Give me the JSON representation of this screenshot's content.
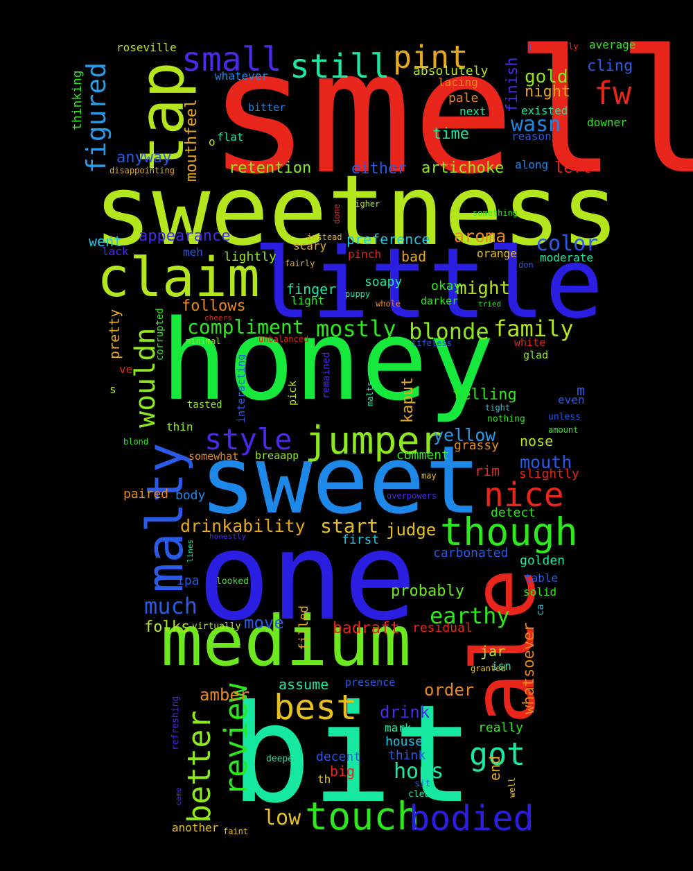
{
  "words": [
    {
      "text": "smell",
      "color": "#e8261c"
    },
    {
      "text": "sweetness",
      "color": "#b4e61e"
    },
    {
      "text": "honey",
      "color": "#16e83c"
    },
    {
      "text": "little",
      "color": "#2a1fe0"
    },
    {
      "text": "one",
      "color": "#2a1fe0"
    },
    {
      "text": "sweet",
      "color": "#1e88e8"
    },
    {
      "text": "bit",
      "color": "#16e8a0"
    },
    {
      "text": "ale",
      "color": "#e8261c"
    },
    {
      "text": "medium",
      "color": "#6ee81e"
    },
    {
      "text": "claim",
      "color": "#b4e61e"
    },
    {
      "text": "tap",
      "color": "#b4e61e"
    },
    {
      "text": "malty",
      "color": "#2a5ae8"
    },
    {
      "text": "jumper",
      "color": "#8ee81e"
    },
    {
      "text": "though",
      "color": "#2ee81e"
    },
    {
      "text": "touch",
      "color": "#2ee81e"
    },
    {
      "text": "bodied",
      "color": "#2a1fe0"
    },
    {
      "text": "best",
      "color": "#e8c01e"
    },
    {
      "text": "review",
      "color": "#2ee81e"
    },
    {
      "text": "better",
      "color": "#8ee81e"
    },
    {
      "text": "nice",
      "color": "#e8261c"
    },
    {
      "text": "got",
      "color": "#1ee8a0"
    },
    {
      "text": "still",
      "color": "#1ee8a0"
    },
    {
      "text": "pint",
      "color": "#e8a81e"
    },
    {
      "text": "small",
      "color": "#4a2ae8"
    },
    {
      "text": "fw",
      "color": "#e8261c"
    },
    {
      "text": "figured",
      "color": "#2a9ae8"
    },
    {
      "text": "wouldn",
      "color": "#8ee81e"
    },
    {
      "text": "style",
      "color": "#4a2ae8"
    },
    {
      "text": "compliment",
      "color": "#2ee81e"
    },
    {
      "text": "mostly",
      "color": "#2ee81e"
    },
    {
      "text": "blonde",
      "color": "#8ee81e"
    },
    {
      "text": "family",
      "color": "#b4e61e"
    },
    {
      "text": "wasn",
      "color": "#1e88e8"
    },
    {
      "text": "gold",
      "color": "#8ee81e"
    },
    {
      "text": "night",
      "color": "#e8a81e"
    },
    {
      "text": "color",
      "color": "#2a5ae8"
    },
    {
      "text": "aroma",
      "color": "#e8881e"
    },
    {
      "text": "might",
      "color": "#b4e61e"
    },
    {
      "text": "drinkability",
      "color": "#e8a81e"
    },
    {
      "text": "start",
      "color": "#e8c01e"
    },
    {
      "text": "judge",
      "color": "#e8c01e"
    },
    {
      "text": "much",
      "color": "#2a5ae8"
    },
    {
      "text": "earthy",
      "color": "#2ee81e"
    },
    {
      "text": "hops",
      "color": "#1ee8a0"
    },
    {
      "text": "low",
      "color": "#e8c01e"
    },
    {
      "text": "mouth",
      "color": "#2a5ae8"
    },
    {
      "text": "yellow",
      "color": "#2a9ae8"
    },
    {
      "text": "telling",
      "color": "#2ee81e"
    },
    {
      "text": "kaput",
      "color": "#e8a81e"
    },
    {
      "text": "whatsoever",
      "color": "#e8881e"
    },
    {
      "text": "amber",
      "color": "#e8881e"
    },
    {
      "text": "order",
      "color": "#e8881e"
    },
    {
      "text": "drink",
      "color": "#4a2ae8"
    },
    {
      "text": "move",
      "color": "#2a5ae8"
    },
    {
      "text": "badraft",
      "color": "#e8261c"
    },
    {
      "text": "folks",
      "color": "#b4e61e"
    },
    {
      "text": "probably",
      "color": "#6ee81e"
    },
    {
      "text": "retention",
      "color": "#8ee81e"
    },
    {
      "text": "either",
      "color": "#2a5ae8"
    },
    {
      "text": "artichoke",
      "color": "#8ee81e"
    },
    {
      "text": "left",
      "color": "#e8261c"
    },
    {
      "text": "anyway",
      "color": "#2a5ae8"
    },
    {
      "text": "mouthfeel",
      "color": "#e8a81e"
    },
    {
      "text": "finish",
      "color": "#4a2ae8"
    },
    {
      "text": "appearance",
      "color": "#4a2ae8"
    },
    {
      "text": "preference",
      "color": "#1ec8e8"
    },
    {
      "text": "absolutely",
      "color": "#b4e61e"
    },
    {
      "text": "time",
      "color": "#1ee8a0"
    },
    {
      "text": "went",
      "color": "#1ec8e8"
    },
    {
      "text": "pretty",
      "color": "#e8a81e"
    },
    {
      "text": "follows",
      "color": "#e8881e"
    },
    {
      "text": "lightly",
      "color": "#8ee81e"
    },
    {
      "text": "finger",
      "color": "#1ee8a0"
    },
    {
      "text": "soapy",
      "color": "#1ee8a0"
    },
    {
      "text": "okay",
      "color": "#2ee81e"
    },
    {
      "text": "bad",
      "color": "#e8a81e"
    },
    {
      "text": "rim",
      "color": "#e8261c"
    },
    {
      "text": "slightly",
      "color": "#e8261c"
    },
    {
      "text": "nose",
      "color": "#b4e61e"
    },
    {
      "text": "grassy",
      "color": "#e8881e"
    },
    {
      "text": "comment",
      "color": "#2ee81e"
    },
    {
      "text": "jar",
      "color": "#b4e61e"
    },
    {
      "text": "assume",
      "color": "#1ee8a0"
    },
    {
      "text": "golden",
      "color": "#1ee8a0"
    },
    {
      "text": "carbonated",
      "color": "#2a5ae8"
    },
    {
      "text": "first",
      "color": "#1ec8e8"
    },
    {
      "text": "body",
      "color": "#1e88e8"
    },
    {
      "text": "paired",
      "color": "#e8881e"
    },
    {
      "text": "ipa",
      "color": "#2a5ae8"
    },
    {
      "text": "detect",
      "color": "#2ee81e"
    },
    {
      "text": "solid",
      "color": "#2ee81e"
    },
    {
      "text": "table",
      "color": "#2a5ae8"
    },
    {
      "text": "residual",
      "color": "#e8261c"
    },
    {
      "text": "filled",
      "color": "#e8a81e"
    },
    {
      "text": "end",
      "color": "#e8a81e"
    },
    {
      "text": "big",
      "color": "#e8261c"
    },
    {
      "text": "house",
      "color": "#1ec8e8"
    },
    {
      "text": "think",
      "color": "#2a5ae8"
    },
    {
      "text": "decent",
      "color": "#2a5ae8"
    },
    {
      "text": "mark",
      "color": "#1ee8a0"
    },
    {
      "text": "really",
      "color": "#2ee81e"
    },
    {
      "text": "another",
      "color": "#e8c01e"
    },
    {
      "text": "pale",
      "color": "#e8881e"
    },
    {
      "text": "next",
      "color": "#1ee8a0"
    },
    {
      "text": "existed",
      "color": "#1ee8a0"
    },
    {
      "text": "reason",
      "color": "#2a5ae8"
    },
    {
      "text": "cling",
      "color": "#2a5ae8"
    },
    {
      "text": "average",
      "color": "#2ee81e"
    },
    {
      "text": "thinking",
      "color": "#2ee81e"
    },
    {
      "text": "roseville",
      "color": "#b4e61e"
    },
    {
      "text": "whatever",
      "color": "#1e88e8"
    },
    {
      "text": "lacing",
      "color": "#e8881e"
    },
    {
      "text": "bitter",
      "color": "#1e88e8"
    },
    {
      "text": "flat",
      "color": "#1ee8a0"
    },
    {
      "text": "downer",
      "color": "#2ee81e"
    },
    {
      "text": "disappointing",
      "color": "#e8a81e"
    },
    {
      "text": "along",
      "color": "#1e88e8"
    },
    {
      "text": "orange",
      "color": "#e8c01e"
    },
    {
      "text": "moderate",
      "color": "#1ee8a0"
    },
    {
      "text": "darker",
      "color": "#2ee81e"
    },
    {
      "text": "light",
      "color": "#2ee81e"
    },
    {
      "text": "scary",
      "color": "#e8a81e"
    },
    {
      "text": "meh",
      "color": "#2a5ae8"
    },
    {
      "text": "lack",
      "color": "#4a2ae8"
    },
    {
      "text": "pinch",
      "color": "#e8261c"
    },
    {
      "text": "white",
      "color": "#e8261c"
    },
    {
      "text": "glad",
      "color": "#8ee81e"
    },
    {
      "text": "even",
      "color": "#2a5ae8"
    },
    {
      "text": "corrupted",
      "color": "#2ee81e"
    },
    {
      "text": "interacting",
      "color": "#2a5ae8"
    },
    {
      "text": "remained",
      "color": "#4a2ae8"
    },
    {
      "text": "pick",
      "color": "#b4e61e"
    },
    {
      "text": "malts",
      "color": "#1ee8a0"
    },
    {
      "text": "tasted",
      "color": "#8ee81e"
    },
    {
      "text": "thin",
      "color": "#8ee81e"
    },
    {
      "text": "somewhat",
      "color": "#e8881e"
    },
    {
      "text": "breaapp",
      "color": "#8ee81e"
    },
    {
      "text": "blond",
      "color": "#2ee81e"
    },
    {
      "text": "refreshing",
      "color": "#4a2ae8"
    },
    {
      "text": "presence",
      "color": "#2a5ae8"
    },
    {
      "text": "granted",
      "color": "#e8c01e"
    },
    {
      "text": "isn",
      "color": "#1ee8a0"
    },
    {
      "text": "deeper",
      "color": "#1ee8a0"
    },
    {
      "text": "came",
      "color": "#4a2ae8"
    },
    {
      "text": "clear",
      "color": "#1ee8a0"
    },
    {
      "text": "sit",
      "color": "#2a5ae8"
    },
    {
      "text": "well",
      "color": "#e8c01e"
    },
    {
      "text": "faint",
      "color": "#e8c01e"
    },
    {
      "text": "th",
      "color": "#e8c01e"
    },
    {
      "text": "ca",
      "color": "#1ec8e8"
    },
    {
      "text": "virtually",
      "color": "#b4e61e"
    },
    {
      "text": "looked",
      "color": "#2ee81e"
    },
    {
      "text": "honestly",
      "color": "#4a2ae8"
    },
    {
      "text": "lines",
      "color": "#1ee8a0"
    },
    {
      "text": "overpowers",
      "color": "#4a2ae8"
    },
    {
      "text": "may",
      "color": "#e8c01e"
    },
    {
      "text": "amount",
      "color": "#2ee81e"
    },
    {
      "text": "unless",
      "color": "#2a5ae8"
    },
    {
      "text": "tight",
      "color": "#1ec8e8"
    },
    {
      "text": "nothing",
      "color": "#2ee81e"
    },
    {
      "text": "minimal",
      "color": "#8ee81e"
    },
    {
      "text": "unbalanced",
      "color": "#e8261c"
    },
    {
      "text": "lifeless",
      "color": "#2a5ae8"
    },
    {
      "text": "cheers",
      "color": "#e8261c"
    },
    {
      "text": "whole",
      "color": "#e8881e"
    },
    {
      "text": "puppy",
      "color": "#1ee8a0"
    },
    {
      "text": "tried",
      "color": "#2ee81e"
    },
    {
      "text": "don",
      "color": "#2a5ae8"
    },
    {
      "text": "fairly",
      "color": "#e8a81e"
    },
    {
      "text": "instead",
      "color": "#e8a81e"
    },
    {
      "text": "done",
      "color": "#e8261c"
    },
    {
      "text": "higher",
      "color": "#b4e61e"
    },
    {
      "text": "something",
      "color": "#2ee81e"
    },
    {
      "text": "totally",
      "color": "#e8261c"
    },
    {
      "text": "t",
      "color": "#2a5ae8"
    },
    {
      "text": "o",
      "color": "#b4e61e"
    },
    {
      "text": "m",
      "color": "#2a5ae8"
    },
    {
      "text": "s",
      "color": "#b4e61e"
    },
    {
      "text": "ve",
      "color": "#e8261c"
    }
  ]
}
